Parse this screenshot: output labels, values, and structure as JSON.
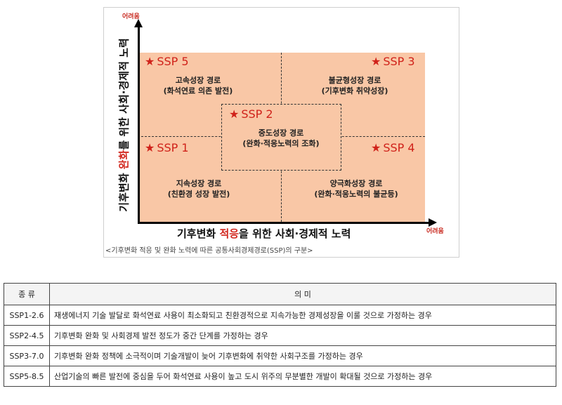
{
  "figure": {
    "y_axis_hard": "어려움",
    "x_axis_hard": "어려움",
    "y_axis_title": {
      "pre": "기후변화 ",
      "highlight": "완화",
      "post": "를 위한 사회·경제적 노력"
    },
    "x_axis_title": {
      "pre": "기후변화 ",
      "highlight": "적응",
      "post": "을 위한 사회·경제적 노력"
    },
    "star": "★",
    "quadrants": [
      {
        "ssp": "SSP 5",
        "line1": "고속성장 경로",
        "line2": "(화석연료 의존 발전)"
      },
      {
        "ssp": "SSP 3",
        "line1": "불균형성장 경로",
        "line2": "(기후변화 취약성장)"
      },
      {
        "ssp": "SSP 2",
        "line1": "중도성장 경로",
        "line2": "(완화·적응노력의 조화)"
      },
      {
        "ssp": "SSP 1",
        "line1": "지속성장 경로",
        "line2": "(친환경 성장 발전)"
      },
      {
        "ssp": "SSP 4",
        "line1": "양극화성장 경로",
        "line2": "(완화·적응노력의 불균등)"
      }
    ],
    "caption": "<기후변화 적응 및 완화 노력에 따른 공통사회경제경로(SSP)의 구분>",
    "colors": {
      "quadrant_fill": "#f9c7a6",
      "accent_red": "#d0221a"
    }
  },
  "table": {
    "headers": [
      "종 류",
      "의 미"
    ],
    "rows": [
      {
        "code": "SSP1-2.6",
        "desc": "재생에너지 기술 발달로 화석연료 사용이 최소화되고 친환경적으로 지속가능한 경제성장을 이룰 것으로 가정하는 경우"
      },
      {
        "code": "SSP2-4.5",
        "desc": "기후변화 완화 및 사회경제 발전 정도가 중간 단계를 가정하는 경우"
      },
      {
        "code": "SSP3-7.0",
        "desc": "기후변화 완화 정책에 소극적이며 기술개발이 늦어 기후변화에 취약한 사회구조를 가정하는 경우"
      },
      {
        "code": "SSP5-8.5",
        "desc": "산업기술의 빠른 발전에 중심을 두어 화석연료 사용이 높고 도시 위주의 무분별한 개발이 확대될 것으로 가정하는 경우"
      }
    ]
  }
}
